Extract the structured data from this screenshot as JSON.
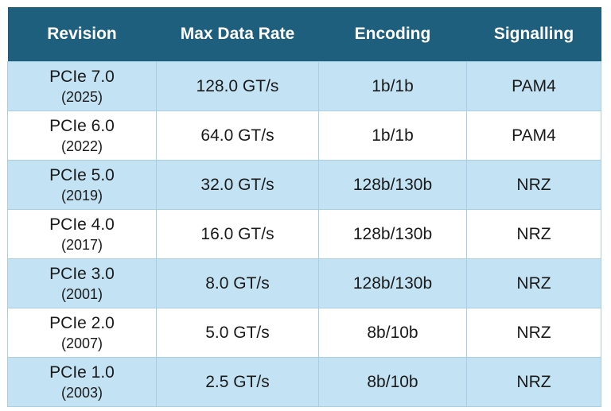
{
  "table": {
    "headers": [
      "Revision",
      "Max Data Rate",
      "Encoding",
      "Signalling"
    ],
    "rows": [
      {
        "revision": "PCIe 7.0",
        "year": "(2025)",
        "rate": "128.0 GT/s",
        "encoding": "1b/1b",
        "signalling": "PAM4"
      },
      {
        "revision": "PCIe 6.0",
        "year": "(2022)",
        "rate": "64.0 GT/s",
        "encoding": "1b/1b",
        "signalling": "PAM4"
      },
      {
        "revision": "PCIe 5.0",
        "year": "(2019)",
        "rate": "32.0 GT/s",
        "encoding": "128b/130b",
        "signalling": "NRZ"
      },
      {
        "revision": "PCIe 4.0",
        "year": "(2017)",
        "rate": "16.0 GT/s",
        "encoding": "128b/130b",
        "signalling": "NRZ"
      },
      {
        "revision": "PCIe 3.0",
        "year": "(2001)",
        "rate": "8.0 GT/s",
        "encoding": "128b/130b",
        "signalling": "NRZ"
      },
      {
        "revision": "PCIe 2.0",
        "year": "(2007)",
        "rate": "5.0 GT/s",
        "encoding": "8b/10b",
        "signalling": "NRZ"
      },
      {
        "revision": "PCIe 1.0",
        "year": "(2003)",
        "rate": "2.5 GT/s",
        "encoding": "8b/10b",
        "signalling": "NRZ"
      }
    ]
  },
  "colors": {
    "header_bg": "#1f5f7e",
    "header_text": "#ffffff",
    "row_shaded": "#c3e2f3",
    "row_plain": "#ffffff",
    "grid": "#a9cfe3"
  }
}
